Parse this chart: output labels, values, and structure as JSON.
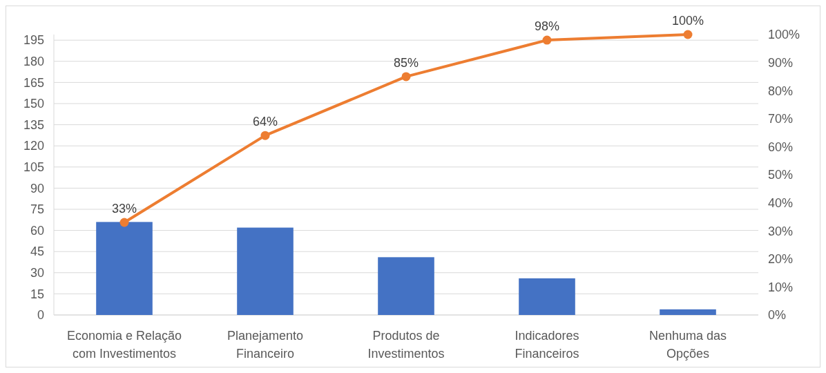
{
  "chart_data": {
    "type": "bar",
    "categories": [
      "Economia e Relação com Investimentos",
      "Planejamento Financeiro",
      "Produtos de Investimentos",
      "Indicadores Financeiros",
      "Nenhuma das Opções"
    ],
    "series": [
      {
        "color": "#4472c4",
        "values": [
          66,
          62,
          41,
          26,
          4
        ]
      },
      {
        "type": "line",
        "axis": "y2",
        "color": "#ed7d31",
        "values": [
          33,
          64,
          85,
          98,
          100
        ],
        "value_labels": [
          "33%",
          "64%",
          "85%",
          "98%",
          "100%"
        ],
        "marker": "circle"
      }
    ],
    "ylim": [
      0,
      199
    ],
    "yticks": [
      0,
      15,
      30,
      45,
      60,
      75,
      90,
      105,
      120,
      135,
      150,
      165,
      180,
      195
    ],
    "y2lim": [
      0,
      100
    ],
    "y2ticks": [
      {
        "value": 0,
        "label": "0%"
      },
      {
        "value": 10,
        "label": "10%"
      },
      {
        "value": 20,
        "label": "20%"
      },
      {
        "value": 30,
        "label": "30%"
      },
      {
        "value": 40,
        "label": "40%"
      },
      {
        "value": 50,
        "label": "50%"
      },
      {
        "value": 60,
        "label": "60%"
      },
      {
        "value": 70,
        "label": "70%"
      },
      {
        "value": 80,
        "label": "80%"
      },
      {
        "value": 90,
        "label": "90%"
      },
      {
        "value": 100,
        "label": "100%"
      }
    ],
    "grid": "y"
  }
}
